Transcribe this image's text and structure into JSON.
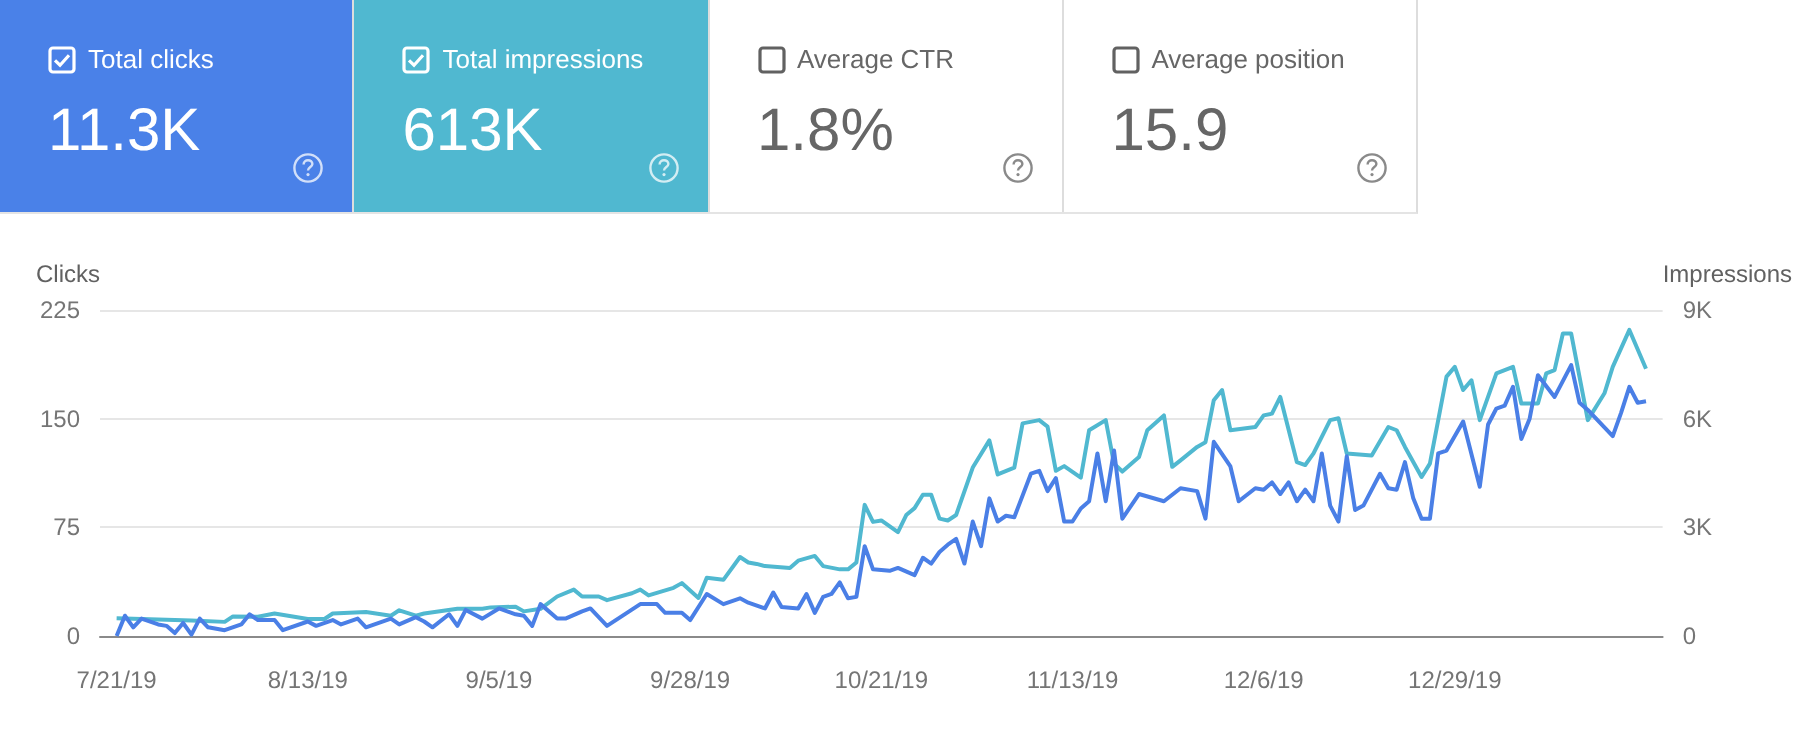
{
  "chart_data": [
    {
      "type": "other",
      "categories": [
        "Total clicks",
        "Total impressions",
        "Average CTR",
        "Average position"
      ],
      "value_labels": [
        "11.3K",
        "613K",
        "1.8%",
        "15.9"
      ],
      "colors": [
        "#4a81e8",
        "#50b8d0",
        null,
        null
      ]
    },
    {
      "type": "line",
      "ylabel": "Clicks",
      "y2label": "Impressions",
      "grid": "y",
      "xlim": [
        "2019-07-19",
        "2020-01-23"
      ],
      "xticks": [
        {
          "value": "2019-07-21",
          "label": "7/21/19"
        },
        {
          "value": "2019-08-13",
          "label": "8/13/19"
        },
        {
          "value": "2019-09-05",
          "label": "9/5/19"
        },
        {
          "value": "2019-09-28",
          "label": "9/28/19"
        },
        {
          "value": "2019-10-21",
          "label": "10/21/19"
        },
        {
          "value": "2019-11-13",
          "label": "11/13/19"
        },
        {
          "value": "2019-12-06",
          "label": "12/6/19"
        },
        {
          "value": "2019-12-29",
          "label": "12/29/19"
        }
      ],
      "ylim": [
        0,
        225
      ],
      "yticks": [
        0,
        75,
        150,
        225
      ],
      "y2lim": [
        0,
        9000
      ],
      "y2ticks": [
        0,
        {
          "value": 3000,
          "label": "3K"
        },
        {
          "value": 6000,
          "label": "6K"
        },
        {
          "value": 9000,
          "label": "9K"
        }
      ],
      "series": [
        {
          "color": "#50b8d0",
          "axis": "y2",
          "x": [
            "2019-07-21",
            "2019-07-30",
            "2019-08-03",
            "2019-08-04",
            "2019-08-07",
            "2019-08-09",
            "2019-08-13",
            "2019-08-15",
            "2019-08-16",
            "2019-08-20",
            "2019-08-23",
            "2019-08-24",
            "2019-08-26",
            "2019-08-27",
            "2019-08-31",
            "2019-09-03",
            "2019-09-04",
            "2019-09-07",
            "2019-09-08",
            "2019-09-10",
            "2019-09-12",
            "2019-09-14",
            "2019-09-15",
            "2019-09-17",
            "2019-09-18",
            "2019-09-21",
            "2019-09-22",
            "2019-09-23",
            "2019-09-26",
            "2019-09-27",
            "2019-09-29",
            "2019-09-30",
            "2019-10-02",
            "2019-10-04",
            "2019-10-05",
            "2019-10-06",
            "2019-10-07",
            "2019-10-10",
            "2019-10-11",
            "2019-10-13",
            "2019-10-14",
            "2019-10-16",
            "2019-10-17",
            "2019-10-18",
            "2019-10-19",
            "2019-10-20",
            "2019-10-21",
            "2019-10-23",
            "2019-10-24",
            "2019-10-25",
            "2019-10-26",
            "2019-10-27",
            "2019-10-28",
            "2019-10-29",
            "2019-10-30",
            "2019-11-01",
            "2019-11-03",
            "2019-11-04",
            "2019-11-06",
            "2019-11-07",
            "2019-11-09",
            "2019-11-10",
            "2019-11-11",
            "2019-11-12",
            "2019-11-14",
            "2019-11-15",
            "2019-11-17",
            "2019-11-18",
            "2019-11-19",
            "2019-11-21",
            "2019-11-22",
            "2019-11-24",
            "2019-11-25",
            "2019-11-26",
            "2019-11-28",
            "2019-11-29",
            "2019-11-30",
            "2019-12-01",
            "2019-12-02",
            "2019-12-05",
            "2019-12-06",
            "2019-12-07",
            "2019-12-08",
            "2019-12-10",
            "2019-12-11",
            "2019-12-12",
            "2019-12-14",
            "2019-12-15",
            "2019-12-16",
            "2019-12-19",
            "2019-12-21",
            "2019-12-22",
            "2019-12-23",
            "2019-12-25",
            "2019-12-26",
            "2019-12-28",
            "2019-12-29",
            "2019-12-30",
            "2019-12-31",
            "2020-01-01",
            "2020-01-03",
            "2020-01-05",
            "2020-01-06",
            "2020-01-08",
            "2020-01-09",
            "2020-01-10",
            "2020-01-11",
            "2020-01-12",
            "2020-01-14",
            "2020-01-16",
            "2020-01-17",
            "2020-01-19",
            "2020-01-21"
          ],
          "values": [
            490,
            430,
            390,
            540,
            530,
            620,
            470,
            470,
            620,
            660,
            560,
            710,
            560,
            620,
            750,
            750,
            790,
            810,
            680,
            750,
            1090,
            1280,
            1090,
            1090,
            990,
            1180,
            1280,
            1120,
            1330,
            1460,
            1050,
            1610,
            1550,
            2180,
            2030,
            1990,
            1930,
            1880,
            2080,
            2210,
            1930,
            1840,
            1840,
            2030,
            3620,
            3150,
            3190,
            2870,
            3340,
            3530,
            3900,
            3900,
            3240,
            3190,
            3340,
            4650,
            5400,
            4460,
            4650,
            5870,
            5960,
            5780,
            4560,
            4690,
            4370,
            5680,
            5960,
            4760,
            4540,
            4940,
            5680,
            6090,
            4670,
            4850,
            5220,
            5350,
            6510,
            6790,
            5680,
            5770,
            6090,
            6140,
            6600,
            4800,
            4720,
            5040,
            5960,
            6010,
            5040,
            4980,
            5770,
            5680,
            5220,
            4390,
            4760,
            7160,
            7430,
            6790,
            7060,
            5960,
            7250,
            7430,
            6420,
            6420,
            7250,
            7340,
            8350,
            8350,
            5960,
            6700,
            7430,
            8450,
            7380
          ]
        },
        {
          "color": "#4a7fe6",
          "x": [
            "2019-07-21",
            "2019-07-22",
            "2019-07-23",
            "2019-07-24",
            "2019-07-26",
            "2019-07-27",
            "2019-07-28",
            "2019-07-29",
            "2019-07-30",
            "2019-07-31",
            "2019-08-01",
            "2019-08-03",
            "2019-08-05",
            "2019-08-06",
            "2019-08-07",
            "2019-08-09",
            "2019-08-10",
            "2019-08-13",
            "2019-08-14",
            "2019-08-16",
            "2019-08-17",
            "2019-08-19",
            "2019-08-20",
            "2019-08-23",
            "2019-08-24",
            "2019-08-26",
            "2019-08-27",
            "2019-08-28",
            "2019-08-30",
            "2019-08-31",
            "2019-09-01",
            "2019-09-03",
            "2019-09-05",
            "2019-09-07",
            "2019-09-08",
            "2019-09-09",
            "2019-09-10",
            "2019-09-12",
            "2019-09-13",
            "2019-09-15",
            "2019-09-16",
            "2019-09-18",
            "2019-09-22",
            "2019-09-24",
            "2019-09-25",
            "2019-09-27",
            "2019-09-28",
            "2019-09-30",
            "2019-10-02",
            "2019-10-04",
            "2019-10-05",
            "2019-10-07",
            "2019-10-08",
            "2019-10-09",
            "2019-10-11",
            "2019-10-12",
            "2019-10-13",
            "2019-10-14",
            "2019-10-15",
            "2019-10-16",
            "2019-10-17",
            "2019-10-18",
            "2019-10-19",
            "2019-10-20",
            "2019-10-22",
            "2019-10-23",
            "2019-10-25",
            "2019-10-26",
            "2019-10-27",
            "2019-10-28",
            "2019-10-29",
            "2019-10-30",
            "2019-10-31",
            "2019-11-01",
            "2019-11-02",
            "2019-11-03",
            "2019-11-04",
            "2019-11-05",
            "2019-11-06",
            "2019-11-08",
            "2019-11-09",
            "2019-11-10",
            "2019-11-11",
            "2019-11-12",
            "2019-11-13",
            "2019-11-14",
            "2019-11-15",
            "2019-11-16",
            "2019-11-17",
            "2019-11-18",
            "2019-11-19",
            "2019-11-21",
            "2019-11-24",
            "2019-11-26",
            "2019-11-28",
            "2019-11-29",
            "2019-11-30",
            "2019-12-02",
            "2019-12-03",
            "2019-12-05",
            "2019-12-06",
            "2019-12-07",
            "2019-12-08",
            "2019-12-09",
            "2019-12-10",
            "2019-12-11",
            "2019-12-12",
            "2019-12-13",
            "2019-12-14",
            "2019-12-15",
            "2019-12-16",
            "2019-12-17",
            "2019-12-18",
            "2019-12-20",
            "2019-12-21",
            "2019-12-22",
            "2019-12-23",
            "2019-12-24",
            "2019-12-25",
            "2019-12-26",
            "2019-12-27",
            "2019-12-28",
            "2019-12-30",
            "2020-01-01",
            "2020-01-02",
            "2020-01-03",
            "2020-01-04",
            "2020-01-05",
            "2020-01-06",
            "2020-01-07",
            "2020-01-08",
            "2020-01-10",
            "2020-01-12",
            "2020-01-13",
            "2020-01-14",
            "2020-01-17",
            "2020-01-18",
            "2020-01-19",
            "2020-01-20",
            "2020-01-21"
          ],
          "values": [
            0,
            14,
            6,
            12,
            8,
            7,
            2,
            9,
            1,
            12,
            6,
            4,
            8,
            15,
            11,
            11,
            4,
            10,
            7,
            11,
            8,
            12,
            6,
            12,
            8,
            13,
            10,
            6,
            15,
            7,
            18,
            12,
            19,
            15,
            14,
            7,
            22,
            12,
            12,
            17,
            19,
            7,
            22,
            22,
            16,
            16,
            11,
            29,
            22,
            26,
            23,
            19,
            30,
            20,
            19,
            29,
            16,
            27,
            29,
            37,
            26,
            27,
            62,
            46,
            45,
            47,
            42,
            54,
            50,
            58,
            63,
            67,
            50,
            79,
            62,
            95,
            79,
            83,
            82,
            112,
            114,
            100,
            109,
            79,
            79,
            88,
            93,
            126,
            93,
            128,
            81,
            98,
            93,
            102,
            100,
            81,
            134,
            117,
            93,
            102,
            101,
            106,
            98,
            106,
            93,
            101,
            93,
            126,
            90,
            79,
            124,
            87,
            90,
            112,
            102,
            101,
            120,
            95,
            81,
            81,
            126,
            128,
            148,
            103,
            146,
            157,
            159,
            172,
            136,
            150,
            180,
            165,
            187,
            161,
            156,
            138,
            154,
            172,
            161,
            162
          ]
        }
      ]
    }
  ]
}
